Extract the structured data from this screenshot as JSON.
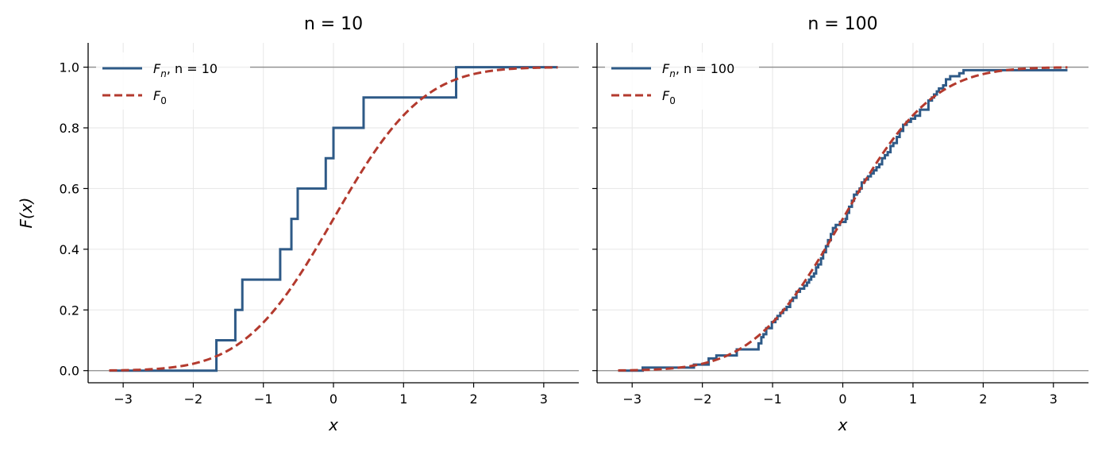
{
  "chart_data": [
    {
      "type": "line",
      "title": "n = 10",
      "xlabel": "x",
      "ylabel": "F(x)",
      "xlim": [
        -3.5,
        3.5
      ],
      "ylim": [
        -0.04,
        1.08
      ],
      "xticks": [
        -3,
        -2,
        -1,
        0,
        1,
        2,
        3
      ],
      "yticks": [
        0.0,
        0.2,
        0.4,
        0.6,
        0.8,
        1.0
      ],
      "xtick_labels": [
        "−3",
        "−2",
        "−1",
        "0",
        "1",
        "2",
        "3"
      ],
      "ytick_labels": [
        "0.0",
        "0.2",
        "0.4",
        "0.6",
        "0.8",
        "1.0"
      ],
      "grid": true,
      "reference_lines": [
        0,
        1
      ],
      "legend_position": "upper-left",
      "series": [
        {
          "name": "F_n, n = 10",
          "legend_main": "F",
          "legend_sub": "n",
          "legend_tail": ", n = 10",
          "kind": "step",
          "color": "#2e5a87",
          "x": [
            -3.2,
            -1.67,
            -1.4,
            -1.3,
            -0.76,
            -0.6,
            -0.51,
            -0.11,
            0.0,
            0.43,
            1.75,
            3.2
          ],
          "y": [
            0.0,
            0.1,
            0.2,
            0.3,
            0.4,
            0.5,
            0.6,
            0.7,
            0.8,
            0.9,
            1.0,
            1.0
          ]
        },
        {
          "name": "F_0",
          "legend_main": "F",
          "legend_sub": "0",
          "legend_tail": "",
          "kind": "normal-cdf",
          "color": "#b33a2e",
          "x_range": [
            -3.2,
            3.2
          ]
        }
      ]
    },
    {
      "type": "line",
      "title": "n = 100",
      "xlabel": "x",
      "ylabel": "",
      "xlim": [
        -3.5,
        3.5
      ],
      "ylim": [
        -0.04,
        1.08
      ],
      "xticks": [
        -3,
        -2,
        -1,
        0,
        1,
        2,
        3
      ],
      "yticks": [
        0.0,
        0.2,
        0.4,
        0.6,
        0.8,
        1.0
      ],
      "xtick_labels": [
        "−3",
        "−2",
        "−1",
        "0",
        "1",
        "2",
        "3"
      ],
      "ytick_labels": [],
      "grid": true,
      "reference_lines": [
        0,
        1
      ],
      "legend_position": "upper-left",
      "series": [
        {
          "name": "F_n, n = 100",
          "legend_main": "F",
          "legend_sub": "n",
          "legend_tail": ", n = 100",
          "kind": "step",
          "color": "#2e5a87",
          "x": [
            -3.2,
            -2.85,
            -2.12,
            -1.91,
            -1.8,
            -1.51,
            -1.2,
            -1.16,
            -1.13,
            -1.09,
            -1.01,
            -0.96,
            -0.93,
            -0.89,
            -0.85,
            -0.8,
            -0.75,
            -0.71,
            -0.66,
            -0.61,
            -0.55,
            -0.51,
            -0.48,
            -0.45,
            -0.41,
            -0.38,
            -0.35,
            -0.31,
            -0.28,
            -0.24,
            -0.21,
            -0.17,
            -0.14,
            -0.1,
            -0.04,
            0.04,
            0.06,
            0.09,
            0.13,
            0.16,
            0.2,
            0.24,
            0.27,
            0.31,
            0.36,
            0.4,
            0.44,
            0.48,
            0.52,
            0.56,
            0.6,
            0.64,
            0.68,
            0.72,
            0.77,
            0.81,
            0.86,
            0.91,
            0.97,
            1.03,
            1.1,
            1.22,
            1.27,
            1.3,
            1.34,
            1.37,
            1.43,
            1.47,
            1.53,
            1.59,
            1.66,
            1.72,
            1.8,
            3.2
          ],
          "y": [
            0.0,
            0.01,
            0.02,
            0.04,
            0.05,
            0.07,
            0.09,
            0.11,
            0.12,
            0.14,
            0.16,
            0.17,
            0.18,
            0.19,
            0.2,
            0.21,
            0.23,
            0.24,
            0.26,
            0.27,
            0.28,
            0.29,
            0.3,
            0.31,
            0.32,
            0.34,
            0.35,
            0.37,
            0.39,
            0.41,
            0.43,
            0.45,
            0.47,
            0.48,
            0.49,
            0.5,
            0.52,
            0.54,
            0.56,
            0.58,
            0.59,
            0.6,
            0.62,
            0.63,
            0.64,
            0.65,
            0.66,
            0.67,
            0.68,
            0.7,
            0.71,
            0.72,
            0.74,
            0.75,
            0.77,
            0.79,
            0.81,
            0.82,
            0.83,
            0.84,
            0.86,
            0.89,
            0.9,
            0.91,
            0.92,
            0.93,
            0.94,
            0.96,
            0.97,
            0.97,
            0.98,
            0.99,
            0.99,
            0.99
          ]
        },
        {
          "name": "F_0",
          "legend_main": "F",
          "legend_sub": "0",
          "legend_tail": "",
          "kind": "normal-cdf",
          "color": "#b33a2e",
          "x_range": [
            -3.2,
            3.2
          ]
        }
      ]
    }
  ]
}
